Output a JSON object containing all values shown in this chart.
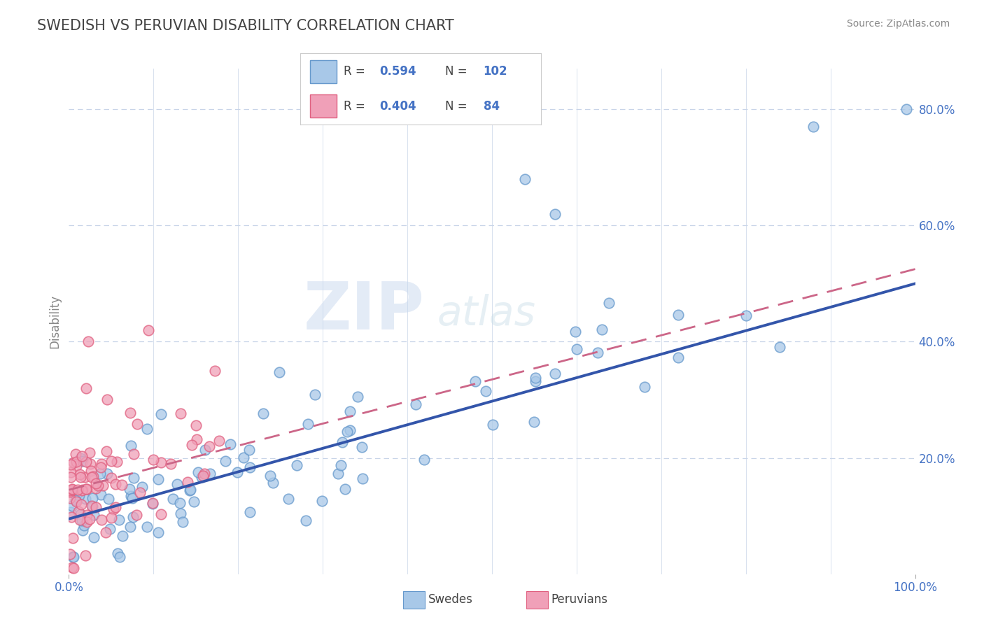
{
  "title": "SWEDISH VS PERUVIAN DISABILITY CORRELATION CHART",
  "source": "Source: ZipAtlas.com",
  "ylabel": "Disability",
  "xlim": [
    0,
    1.0
  ],
  "ylim": [
    0.0,
    0.87
  ],
  "ytick_labels_right": [
    "20.0%",
    "40.0%",
    "60.0%",
    "80.0%"
  ],
  "ytick_vals_right": [
    0.2,
    0.4,
    0.6,
    0.8
  ],
  "swedes_R": 0.594,
  "swedes_N": 102,
  "peruvians_R": 0.404,
  "peruvians_N": 84,
  "swedes_color": "#a8c8e8",
  "peruvians_color": "#f0a0b8",
  "swedes_edge_color": "#6699cc",
  "peruvians_edge_color": "#e06080",
  "swedes_line_color": "#3355aa",
  "peruvians_line_color": "#cc6688",
  "title_color": "#444444",
  "source_color": "#888888",
  "background_color": "#ffffff",
  "grid_color": "#c8d4e8",
  "legend_border_color": "#cccccc",
  "legend_text_color": "#4472c4",
  "watermark_zip_color": "#d0ddf0",
  "watermark_atlas_color": "#c8d8e8",
  "axis_label_color": "#4472c4",
  "ylabel_color": "#888888"
}
